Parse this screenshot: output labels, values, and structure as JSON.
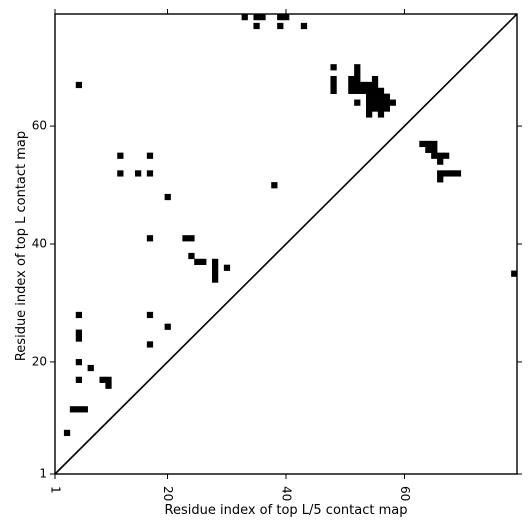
{
  "chart_data": {
    "type": "scatter",
    "marker": "square",
    "marker_color": "#000000",
    "xlabel": "Residue index of top L/5 contact map",
    "ylabel": "Residue index of top L contact map",
    "xlim": [
      1,
      79
    ],
    "ylim": [
      1,
      79
    ],
    "xticks": [
      1,
      20,
      40,
      60
    ],
    "yticks": [
      1,
      20,
      40,
      60
    ],
    "x_tick_labels": [
      "1",
      "20",
      "40",
      "60"
    ],
    "y_tick_labels": [
      "1",
      "20",
      "40",
      "60"
    ],
    "x_tick_rotation_deg": -90,
    "grid": false,
    "diagonal_line": {
      "from": [
        1,
        1
      ],
      "to": [
        79,
        79
      ],
      "color": "#000000"
    },
    "points": [
      [
        3,
        8
      ],
      [
        4,
        12
      ],
      [
        5,
        12
      ],
      [
        6,
        12
      ],
      [
        5,
        17
      ],
      [
        5,
        20
      ],
      [
        7,
        19
      ],
      [
        9,
        17
      ],
      [
        10,
        17
      ],
      [
        10,
        16
      ],
      [
        5,
        24
      ],
      [
        5,
        25
      ],
      [
        5,
        28
      ],
      [
        5,
        67
      ],
      [
        12,
        52
      ],
      [
        12,
        55
      ],
      [
        15,
        52
      ],
      [
        17,
        52
      ],
      [
        17,
        55
      ],
      [
        17,
        41
      ],
      [
        17,
        28
      ],
      [
        17,
        23
      ],
      [
        20,
        48
      ],
      [
        20,
        26
      ],
      [
        23,
        41
      ],
      [
        24,
        41
      ],
      [
        24,
        38
      ],
      [
        25,
        37
      ],
      [
        26,
        37
      ],
      [
        28,
        37
      ],
      [
        28,
        36
      ],
      [
        28,
        35
      ],
      [
        28,
        34
      ],
      [
        30,
        36
      ],
      [
        38,
        50
      ],
      [
        33,
        79
      ],
      [
        35,
        79
      ],
      [
        36,
        79
      ],
      [
        39,
        79
      ],
      [
        40,
        79
      ],
      [
        35,
        77
      ],
      [
        39,
        77
      ],
      [
        43,
        77
      ],
      [
        48,
        70
      ],
      [
        48,
        68
      ],
      [
        48,
        67
      ],
      [
        48,
        66
      ],
      [
        51,
        68
      ],
      [
        51,
        67
      ],
      [
        51,
        66
      ],
      [
        52,
        70
      ],
      [
        52,
        69
      ],
      [
        52,
        68
      ],
      [
        52,
        67
      ],
      [
        52,
        66
      ],
      [
        52,
        64
      ],
      [
        53,
        67
      ],
      [
        53,
        66
      ],
      [
        54,
        67
      ],
      [
        54,
        66
      ],
      [
        54,
        65
      ],
      [
        54,
        64
      ],
      [
        54,
        63
      ],
      [
        54,
        62
      ],
      [
        55,
        68
      ],
      [
        55,
        67
      ],
      [
        55,
        66
      ],
      [
        55,
        65
      ],
      [
        55,
        64
      ],
      [
        55,
        63
      ],
      [
        56,
        66
      ],
      [
        56,
        65
      ],
      [
        56,
        64
      ],
      [
        56,
        63
      ],
      [
        56,
        62
      ],
      [
        57,
        65
      ],
      [
        57,
        64
      ],
      [
        57,
        63
      ],
      [
        58,
        64
      ],
      [
        63,
        57
      ],
      [
        64,
        57
      ],
      [
        64,
        56
      ],
      [
        65,
        57
      ],
      [
        65,
        56
      ],
      [
        65,
        55
      ],
      [
        66,
        55
      ],
      [
        66,
        54
      ],
      [
        67,
        55
      ],
      [
        66,
        52
      ],
      [
        66,
        51
      ],
      [
        67,
        52
      ],
      [
        68,
        52
      ],
      [
        69,
        52
      ],
      [
        79,
        35
      ]
    ]
  }
}
